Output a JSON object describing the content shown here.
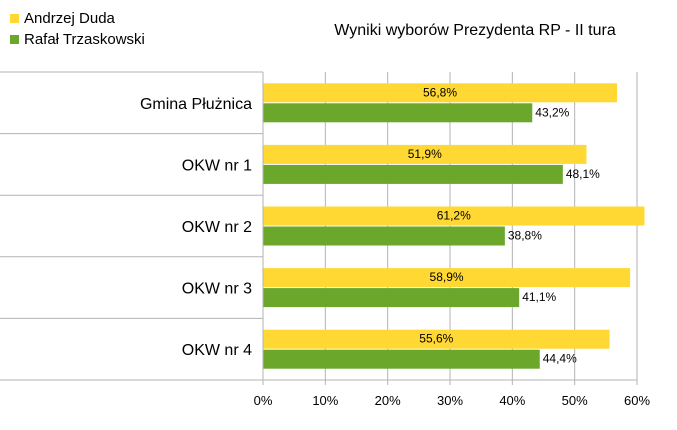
{
  "chart_data": {
    "type": "bar",
    "orientation": "horizontal",
    "title": "Wyniki wyborów Prezydenta RP - II tura",
    "xlabel": "",
    "ylabel": "",
    "categories": [
      "Gmina Płużnica",
      "OKW nr 1",
      "OKW nr 2",
      "OKW nr 3",
      "OKW nr 4"
    ],
    "series": [
      {
        "name": "Andrzej Duda",
        "color": "#ffd833",
        "values": [
          56.8,
          51.9,
          61.2,
          58.9,
          55.6
        ],
        "labels": [
          "56,8%",
          "51,9%",
          "61,2%",
          "58,9%",
          "55,6%"
        ]
      },
      {
        "name": "Rafał Trzaskowski",
        "color": "#6aa72a",
        "values": [
          43.2,
          48.1,
          38.8,
          41.1,
          44.4
        ],
        "labels": [
          "43,2%",
          "48,1%",
          "38,8%",
          "41,1%",
          "44,4%"
        ]
      }
    ],
    "xlim": [
      0,
      60
    ],
    "xticks": [
      "0%",
      "10%",
      "20%",
      "30%",
      "40%",
      "50%",
      "60%"
    ],
    "grid": true,
    "legend_position": "top-left"
  }
}
